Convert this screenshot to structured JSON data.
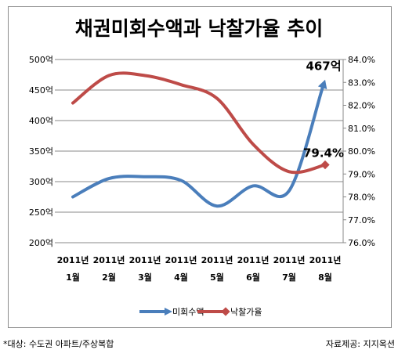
{
  "chart_data": {
    "type": "line",
    "title": "채권미회수액과 낙찰가율 추이",
    "categories": [
      [
        "2011년",
        "1월"
      ],
      [
        "2011년",
        "2월"
      ],
      [
        "2011년",
        "3월"
      ],
      [
        "2011년",
        "4월"
      ],
      [
        "2011년",
        "5월"
      ],
      [
        "2011년",
        "6월"
      ],
      [
        "2011년",
        "7월"
      ],
      [
        "2011년",
        "8월"
      ]
    ],
    "left_axis": {
      "ylim": [
        200,
        500
      ],
      "ticks": [
        "200억",
        "250억",
        "300억",
        "350억",
        "400억",
        "450억",
        "500억"
      ],
      "tick_values": [
        200,
        250,
        300,
        350,
        400,
        450,
        500
      ]
    },
    "right_axis": {
      "ylim": [
        76.0,
        84.0
      ],
      "ticks": [
        "76.0%",
        "77.0%",
        "78.0%",
        "79.0%",
        "80.0%",
        "81.0%",
        "82.0%",
        "83.0%",
        "84.0%"
      ],
      "tick_values": [
        76,
        77,
        78,
        79,
        80,
        81,
        82,
        83,
        84
      ]
    },
    "grid": true,
    "legend_position": "bottom",
    "series": [
      {
        "name": "미회수액",
        "axis": "left",
        "color": "#4a7ebb",
        "values": [
          275,
          305,
          308,
          302,
          260,
          293,
          285,
          467
        ],
        "end_label": "467억"
      },
      {
        "name": "낙찰가율",
        "axis": "right",
        "color": "#be4b48",
        "values": [
          82.1,
          83.3,
          83.3,
          82.9,
          82.3,
          80.3,
          79.1,
          79.4
        ],
        "end_label": "79.4%"
      }
    ]
  },
  "footer": {
    "left": "*대상: 수도권 아파트/주상복합",
    "right": "자료제공: 지지옥션"
  }
}
